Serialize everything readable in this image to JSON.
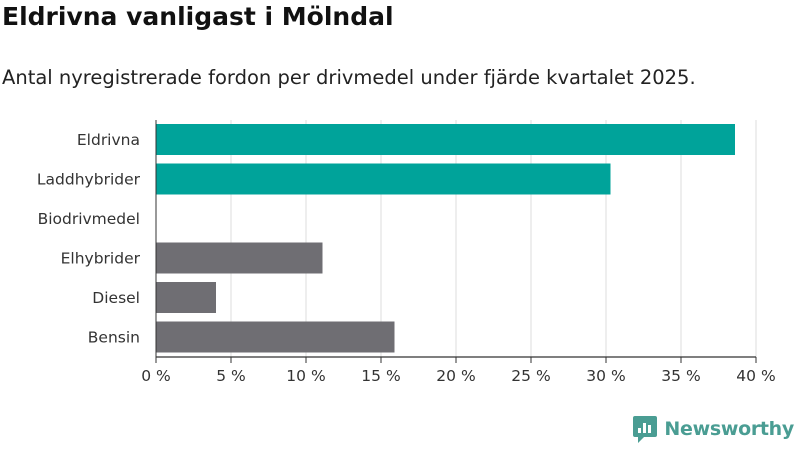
{
  "brand": {
    "name": "Newsworthy",
    "logo_color": "#4a9d93"
  },
  "chart_data": {
    "type": "bar",
    "orientation": "horizontal",
    "title": "Eldrivna vanligast i Mölndal",
    "subtitle": "Antal nyregistrerade fordon per drivmedel under fjärde kvartalet 2025.",
    "xlabel": "",
    "ylabel": "",
    "xlim": [
      0,
      40
    ],
    "x_ticks": [
      0,
      5,
      10,
      15,
      20,
      25,
      30,
      35,
      40
    ],
    "tick_suffix": " %",
    "grid": true,
    "legend": "none",
    "categories": [
      "Eldrivna",
      "Laddhybrider",
      "Biodrivmedel",
      "Elhybrider",
      "Diesel",
      "Bensin"
    ],
    "values": [
      38.6,
      30.3,
      0,
      11.1,
      4.0,
      15.9
    ],
    "colors": [
      "#00a39a",
      "#00a39a",
      "#00a39a",
      "#6f6e73",
      "#6f6e73",
      "#6f6e73"
    ],
    "grid_color": "#dddddd",
    "axis_color": "#333333"
  }
}
